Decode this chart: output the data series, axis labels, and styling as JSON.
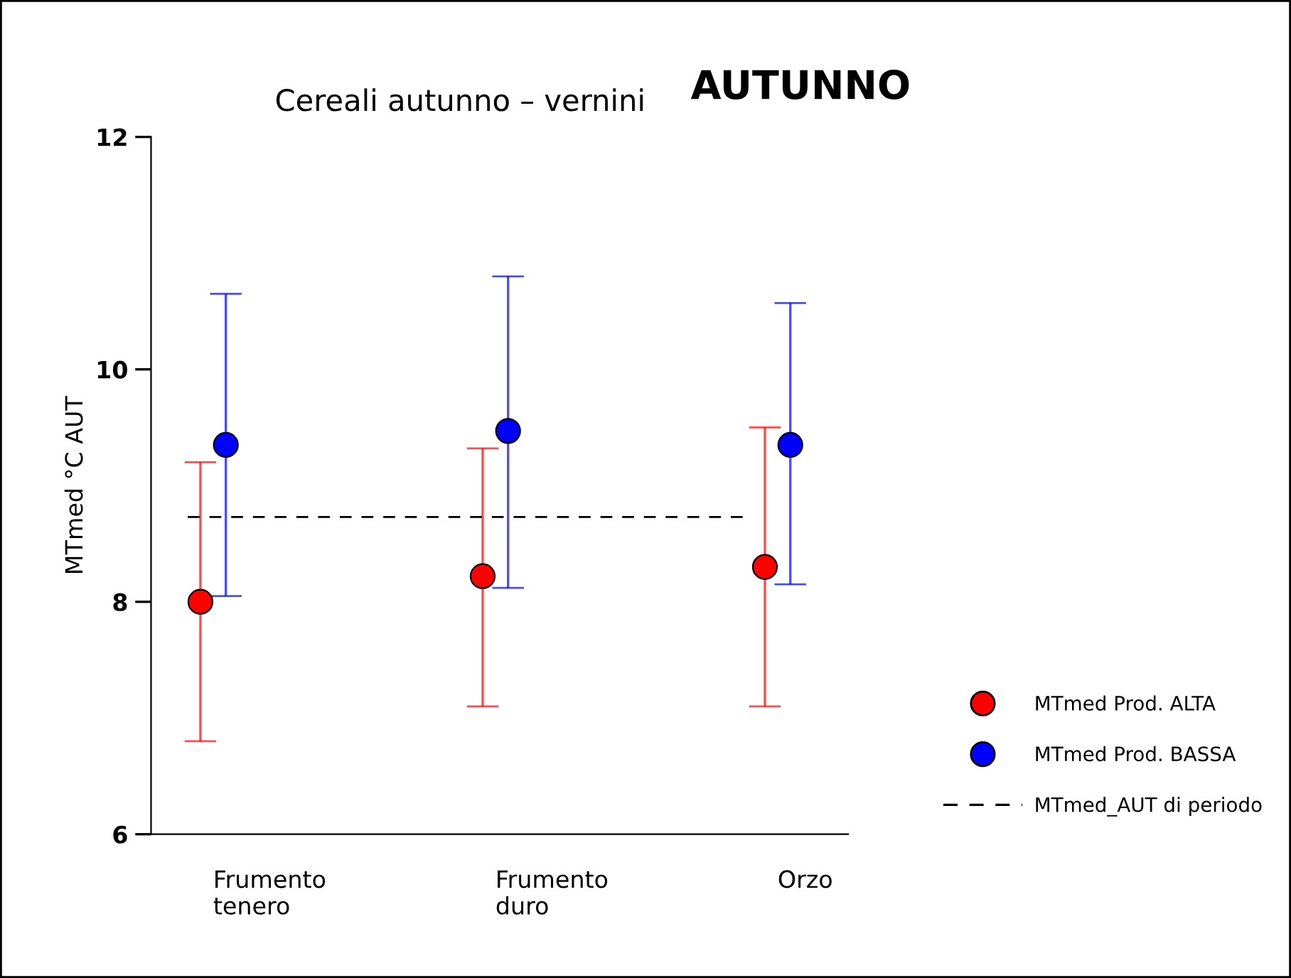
{
  "chart_data": {
    "type": "scatter",
    "title": "Cereali autunno – vernini",
    "subtitle": "AUTUNNO",
    "ylabel": "MTmed °C AUT",
    "categories": [
      "Frumento\ntenero",
      "Frumento\nduro",
      "Orzo"
    ],
    "series": [
      {
        "name": "MTmed Prod. ALTA",
        "color": "#ff0000",
        "values": [
          8.0,
          8.22,
          8.3
        ],
        "errors": [
          [
            6.8,
            9.2
          ],
          [
            7.1,
            9.32
          ],
          [
            7.1,
            9.5
          ]
        ]
      },
      {
        "name": "MTmed Prod. BASSA",
        "color": "#0000ff",
        "values": [
          9.35,
          9.47,
          9.35
        ],
        "errors": [
          [
            8.05,
            10.65
          ],
          [
            8.12,
            10.8
          ],
          [
            8.15,
            10.57
          ]
        ]
      }
    ],
    "ref_lines": [
      {
        "axis": "y",
        "value": 8.73,
        "label": "MTmed_AUT di periodo",
        "color": "#000000",
        "line_style": "dashed"
      }
    ],
    "ylim": [
      6,
      12
    ],
    "yticks": [
      6,
      8,
      10,
      12
    ],
    "marker": "circle",
    "grid": false,
    "legend": "bottom right"
  }
}
